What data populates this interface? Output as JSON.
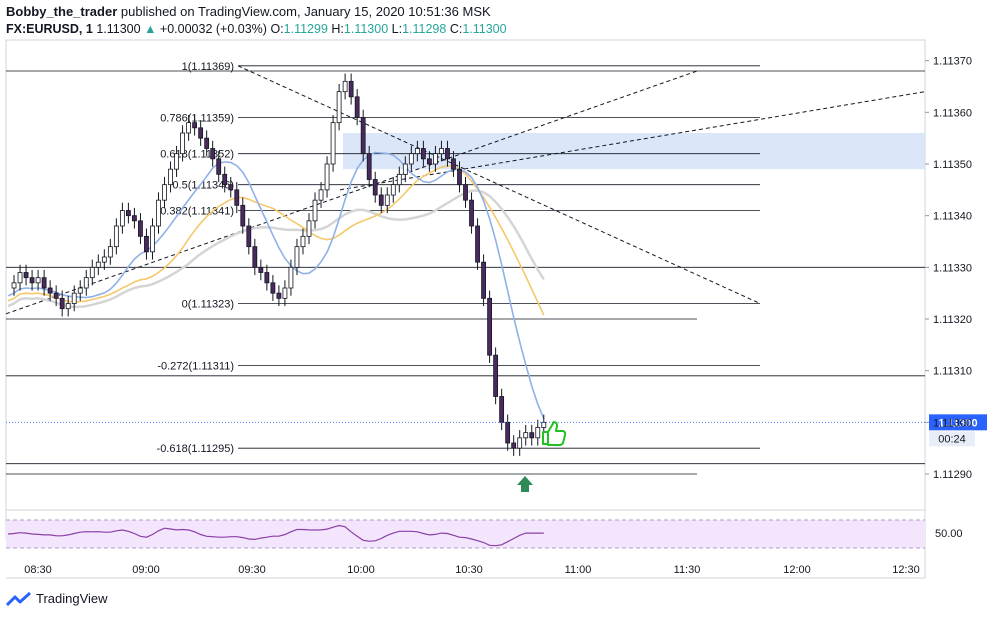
{
  "header": {
    "author": "Bobby_the_trader",
    "published": "published on TradingView.com, January 15, 2020 10:51:36 MSK",
    "symbol": "FX:EURUSD, 1",
    "last": "1.11300",
    "change": "+0.00032 (+0.03%)",
    "o_label": "O:",
    "o": "1.11299",
    "h_label": "H:",
    "h": "1.11300",
    "l_label": "L:",
    "l": "1.11298",
    "c_label": "C:",
    "c": "1.11300"
  },
  "brand": {
    "name": "TradingView"
  },
  "chart_data": {
    "type": "line",
    "time_labels": [
      "08:30",
      "09:00",
      "09:30",
      "10:00",
      "10:30",
      "11:00",
      "11:30",
      "12:00",
      "12:30"
    ],
    "price_ticks": [
      "1.11370",
      "1.11360",
      "1.11350",
      "1.11340",
      "1.11330",
      "1.11320",
      "1.11310",
      "1.11300",
      "1.11290"
    ],
    "price_range": [
      1.11284,
      1.11374
    ],
    "last_price_label": "1.11300",
    "countdown_label": "00:24",
    "rsi_tick": "50.00",
    "fib_levels": [
      {
        "ratio": "1",
        "price": 1.11369,
        "label": "1(1.11369)"
      },
      {
        "ratio": "0.786",
        "price": 1.11359,
        "label": "0.786(1.11359)"
      },
      {
        "ratio": "0.618",
        "price": 1.11352,
        "label": "0.618(1.11352)"
      },
      {
        "ratio": "0.5",
        "price": 1.11346,
        "label": "0.5(1.11346)"
      },
      {
        "ratio": "0.382",
        "price": 1.11341,
        "label": "0.382(1.11341)"
      },
      {
        "ratio": "0",
        "price": 1.11323,
        "label": "0(1.11323)"
      },
      {
        "ratio": "-0.272",
        "price": 1.11311,
        "label": "-0.272(1.11311)"
      },
      {
        "ratio": "-0.618",
        "price": 1.11295,
        "label": "-0.618(1.11295)"
      }
    ],
    "resistance_zone": [
      1.11349,
      1.11356
    ],
    "price_series": [
      1.11326,
      1.11327,
      1.11329,
      1.11328,
      1.11327,
      1.11328,
      1.11326,
      1.11325,
      1.11324,
      1.11322,
      1.11323,
      1.11325,
      1.11326,
      1.11328,
      1.1133,
      1.11331,
      1.11332,
      1.11334,
      1.11338,
      1.11341,
      1.1134,
      1.11339,
      1.11336,
      1.11333,
      1.11338,
      1.11343,
      1.11346,
      1.11349,
      1.11352,
      1.11356,
      1.11358,
      1.11357,
      1.11355,
      1.11353,
      1.11351,
      1.11348,
      1.11346,
      1.11345,
      1.11342,
      1.11338,
      1.11334,
      1.1133,
      1.11329,
      1.11327,
      1.11325,
      1.11324,
      1.11326,
      1.1133,
      1.11334,
      1.11336,
      1.11339,
      1.11343,
      1.11345,
      1.1135,
      1.11358,
      1.11364,
      1.11366,
      1.11363,
      1.11359,
      1.11352,
      1.11347,
      1.11344,
      1.11342,
      1.11344,
      1.11346,
      1.11348,
      1.1135,
      1.11352,
      1.11353,
      1.11351,
      1.1135,
      1.11352,
      1.11353,
      1.11351,
      1.11349,
      1.11346,
      1.11343,
      1.11338,
      1.11331,
      1.11324,
      1.11313,
      1.11305,
      1.113,
      1.11296,
      1.11295,
      1.11297,
      1.11298,
      1.11297,
      1.11299,
      1.113
    ]
  }
}
